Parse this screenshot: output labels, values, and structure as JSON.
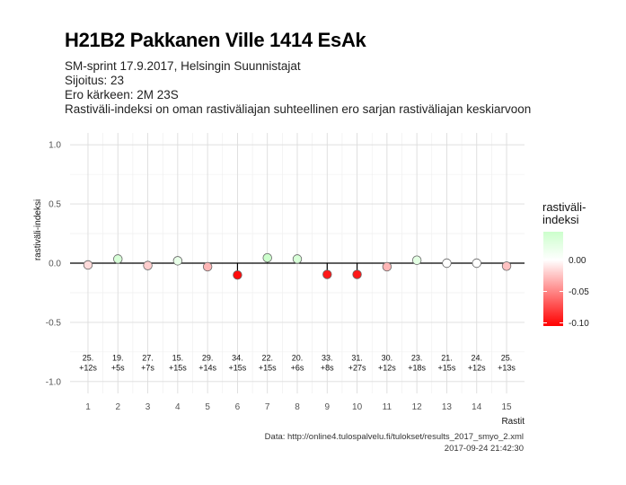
{
  "header": {
    "title": "H21B2 Pakkanen Ville 1414 EsAk",
    "subtitle_lines": [
      "SM-sprint 17.9.2017, Helsingin Suunnistajat",
      "Sijoitus: 23",
      "Ero kärkeen: 2M 23S",
      "Rastiväli-indeksi on oman rastiväliajan suhteellinen ero sarjan rastiväliajan keskiarvoon"
    ]
  },
  "caption": {
    "source": "Data: http://online4.tulospalvelu.fi/tulokset/results_2017_smyo_2.xml",
    "timestamp": "2017-09-24 21:42:30"
  },
  "legend": {
    "title_lines": [
      "rastiväli-",
      "indeksi"
    ],
    "ticks": [
      0.0,
      -0.05,
      -0.1
    ],
    "tick_labels": [
      "0.00",
      "-0.05",
      "-0.10"
    ],
    "range": [
      -0.105,
      0.045
    ]
  },
  "colors": {
    "low": "#ff0000",
    "mid": "#ffffff",
    "high": "#ccffcc"
  },
  "chart_data": {
    "type": "scatter",
    "xlabel": "Rastit",
    "ylabel": "rastiväli-indeksi",
    "x": [
      1,
      2,
      3,
      4,
      5,
      6,
      7,
      8,
      9,
      10,
      11,
      12,
      13,
      14,
      15
    ],
    "values": [
      -0.015,
      0.035,
      -0.02,
      0.02,
      -0.03,
      -0.1,
      0.045,
      0.035,
      -0.095,
      -0.095,
      -0.03,
      0.025,
      0.0,
      0.0,
      -0.025
    ],
    "placement": [
      "25.",
      "19.",
      "27.",
      "15.",
      "29.",
      "34.",
      "22.",
      "20.",
      "33.",
      "31.",
      "30.",
      "23.",
      "21.",
      "24.",
      "25."
    ],
    "diff": [
      "+12s",
      "+5s",
      "+7s",
      "+15s",
      "+14s",
      "+15s",
      "+15s",
      "+6s",
      "+8s",
      "+27s",
      "+12s",
      "+18s",
      "+15s",
      "+12s",
      "+13s"
    ],
    "ylim": [
      -1.1,
      1.1
    ],
    "xlim": [
      0.4,
      15.6
    ],
    "yticks": [
      -1.0,
      -0.5,
      0.0,
      0.5,
      1.0
    ],
    "ytick_labels": [
      "-1.0",
      "-0.5",
      "0.0",
      "0.5",
      "1.0"
    ],
    "xtick_labels": [
      "1",
      "2",
      "3",
      "4",
      "5",
      "6",
      "7",
      "8",
      "9",
      "10",
      "11",
      "12",
      "13",
      "14",
      "15"
    ],
    "grid": true,
    "legend_position": "right"
  }
}
